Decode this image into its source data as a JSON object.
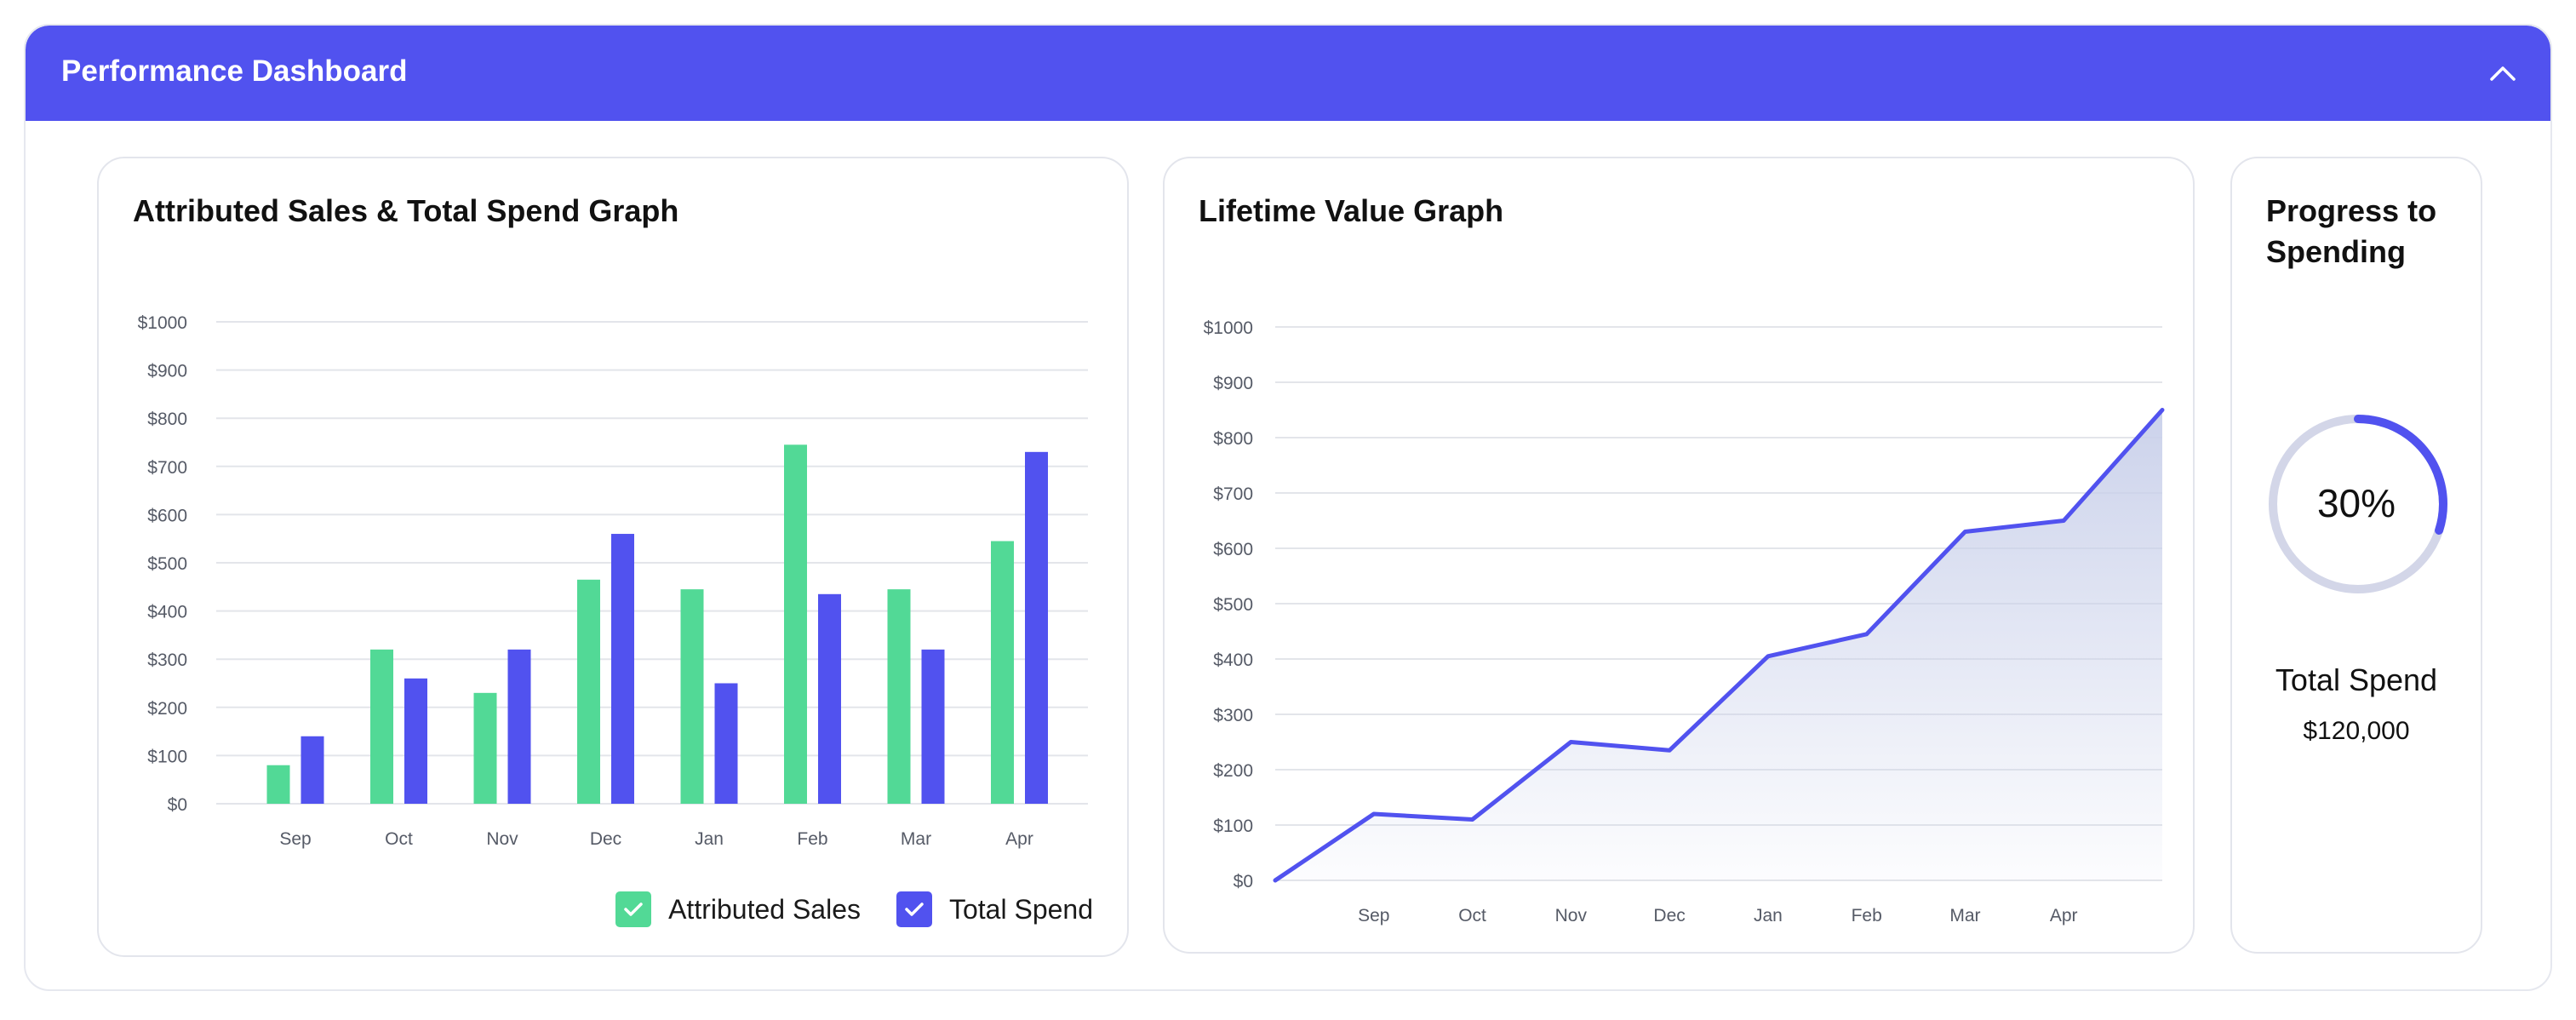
{
  "header": {
    "title": "Performance Dashboard",
    "collapse_icon": "chevron-up-icon",
    "color": "#5152ef"
  },
  "colors": {
    "attributed_sales": "#52d996",
    "total_spend": "#5152ef",
    "area_fill": "#c9d0ea",
    "ring_track": "#d3d6e8"
  },
  "bar_card": {
    "title": "Attributed Sales & Total Spend Graph",
    "legend": [
      {
        "label": "Attributed Sales",
        "icon": "check-icon",
        "color": "#52d996"
      },
      {
        "label": "Total Spend",
        "icon": "check-icon",
        "color": "#5152ef"
      }
    ]
  },
  "line_card": {
    "title": "Lifetime Value Graph"
  },
  "progress_card": {
    "title_line1": "Progress to",
    "title_line2": "Spending",
    "percent_label": "30%",
    "percent_value": 0.3,
    "total_label": "Total Spend",
    "total_value": "$120,000"
  },
  "chart_data": [
    {
      "type": "bar",
      "title": "Attributed Sales & Total Spend Graph",
      "categories": [
        "Sep",
        "Oct",
        "Nov",
        "Dec",
        "Jan",
        "Feb",
        "Mar",
        "Apr"
      ],
      "series": [
        {
          "name": "Attributed Sales",
          "values": [
            80,
            320,
            230,
            465,
            445,
            745,
            445,
            545
          ]
        },
        {
          "name": "Total Spend",
          "values": [
            140,
            260,
            320,
            560,
            250,
            435,
            320,
            730
          ]
        }
      ],
      "ylim": [
        0,
        1000
      ],
      "yticks": [
        "$0",
        "$100",
        "$200",
        "$300",
        "$400",
        "$500",
        "$600",
        "$700",
        "$800",
        "$900",
        "$1000"
      ],
      "grid": true,
      "legend": "bottom-right"
    },
    {
      "type": "area",
      "title": "Lifetime Value Graph",
      "x": [
        "",
        "Sep",
        "Oct",
        "Nov",
        "Dec",
        "Jan",
        "Feb",
        "Mar",
        "Apr",
        ""
      ],
      "xticks": [
        "Sep",
        "Oct",
        "Nov",
        "Dec",
        "Jan",
        "Feb",
        "Mar",
        "Apr"
      ],
      "values": [
        0,
        120,
        110,
        250,
        235,
        405,
        445,
        630,
        650,
        850
      ],
      "ylim": [
        0,
        1000
      ],
      "yticks": [
        "$0",
        "$100",
        "$200",
        "$300",
        "$400",
        "$500",
        "$600",
        "$700",
        "$800",
        "$900",
        "$1000"
      ],
      "grid": true
    }
  ]
}
